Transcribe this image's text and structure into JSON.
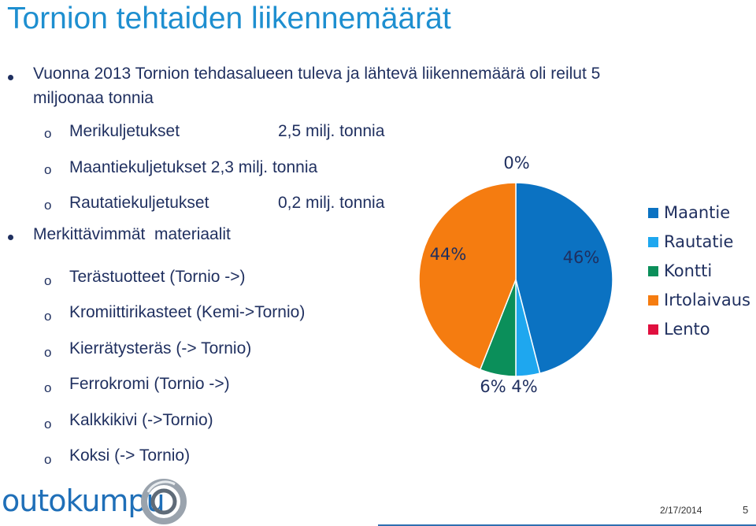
{
  "slide": {
    "title": "Tornion tehtaiden liikennemäärät",
    "bullet1_line1": "Vuonna 2013 Tornion tehdasalueen tuleva ja lähtevä liikennemäärä oli reilut 5",
    "bullet1_line2": "miljoonaa tonnia",
    "sub1": [
      {
        "label": "Merikuljetukset",
        "value": "2,5 milj. tonnia"
      },
      {
        "label": "Maantiekuljetukset 2,3 milj. tonnia",
        "value": ""
      },
      {
        "label": "Rautatiekuljetukset",
        "value": "0,2 milj. tonnia"
      }
    ],
    "bullet2": "Merkittävimmät  materiaalit",
    "sub2": [
      "Terästuotteet (Tornio ->)",
      "Kromiittirikasteet (Kemi->Tornio)",
      "Kierrätysteräs (-> Tornio)",
      "Ferrokromi (Tornio ->)",
      "Kalkkikivi (->Tornio)",
      "Koksi (-> Tornio)"
    ],
    "sub_marker": "o",
    "footer": {
      "logo_text": "outokumpu",
      "date": "2/17/2014",
      "page": "5"
    }
  },
  "chart_data": {
    "type": "pie",
    "categories": [
      "Maantie",
      "Rautatie",
      "Kontti",
      "Irtolaivaus",
      "Lento"
    ],
    "values": [
      46,
      4,
      6,
      44,
      0
    ],
    "labels": [
      "46%",
      "4%",
      "6%",
      "44%",
      "0%"
    ],
    "colors": [
      "#0b72c2",
      "#1ea7ef",
      "#0b8f5a",
      "#f57c10",
      "#e0103f"
    ],
    "legend_position": "right"
  }
}
